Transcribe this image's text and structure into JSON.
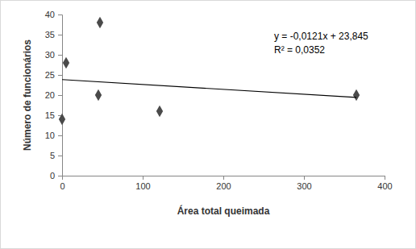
{
  "chart_data": {
    "type": "scatter",
    "x_label": "Área total queimada",
    "y_label": "Número de funcionários",
    "annotations": [
      "y = -0,0121x + 23,845",
      "R² = 0,0352"
    ],
    "xlim": [
      0,
      400
    ],
    "ylim": [
      0,
      40
    ],
    "xticks": [
      0,
      100,
      200,
      300,
      400
    ],
    "yticks": [
      0,
      5,
      10,
      15,
      20,
      25,
      30,
      35,
      40
    ],
    "grid": false,
    "series": [
      {
        "type": "scatter",
        "marker": "diamond",
        "color": "#4a4a4a",
        "x": [
          0,
          5,
          45,
          47,
          121,
          365
        ],
        "values": [
          14,
          28,
          20,
          38,
          16,
          20
        ]
      },
      {
        "type": "line",
        "line_style": "solid",
        "color": "#000000",
        "x": [
          0,
          365
        ],
        "values": [
          23.845,
          19.43
        ]
      }
    ]
  }
}
